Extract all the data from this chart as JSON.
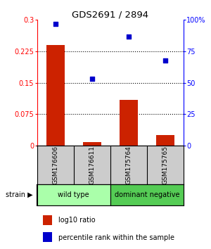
{
  "title": "GDS2691 / 2894",
  "samples": [
    "GSM176606",
    "GSM176611",
    "GSM175764",
    "GSM175765"
  ],
  "log10_ratio": [
    0.24,
    0.008,
    0.11,
    0.025
  ],
  "percentile_rank": [
    97.0,
    53.0,
    87.0,
    68.0
  ],
  "groups": [
    {
      "label": "wild type",
      "samples": [
        0,
        1
      ],
      "color": "#aaffaa"
    },
    {
      "label": "dominant negative",
      "samples": [
        2,
        3
      ],
      "color": "#55cc55"
    }
  ],
  "bar_color": "#cc2200",
  "scatter_color": "#0000cc",
  "ylim_left": [
    0,
    0.3
  ],
  "ylim_right": [
    0,
    100
  ],
  "yticks_left": [
    0,
    0.075,
    0.15,
    0.225,
    0.3
  ],
  "ytick_labels_left": [
    "0",
    "0.075",
    "0.15",
    "0.225",
    "0.3"
  ],
  "yticks_right": [
    0,
    25,
    50,
    75,
    100
  ],
  "ytick_labels_right": [
    "0",
    "25",
    "50",
    "75",
    "100%"
  ],
  "hline_positions": [
    0.075,
    0.15,
    0.225
  ],
  "background_color": "#ffffff",
  "label_row_color": "#cccccc"
}
